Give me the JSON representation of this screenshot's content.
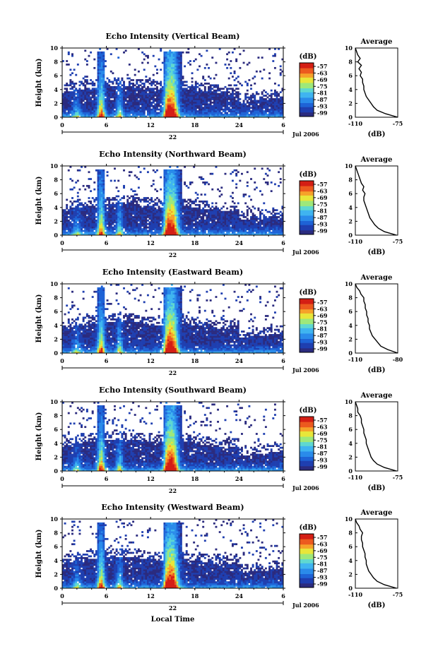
{
  "figure": {
    "xlabel": "Local Time",
    "date_label": "Jul 2006",
    "day_label": "22",
    "cbar_unit": "(dB)",
    "avg_title": "Average",
    "avg_xlabel": "(dB)",
    "ylabel": "Height (km)"
  },
  "chart_data": [
    {
      "type": "heatmap",
      "title": "Echo Intensity (Vertical Beam)",
      "xlabel": "Local Time",
      "ylabel": "Height (km)",
      "xticks": [
        "0",
        "6",
        "12",
        "18",
        "24",
        "6"
      ],
      "xlim": [
        0,
        30
      ],
      "yticks": [
        "0",
        "2",
        "4",
        "6",
        "8",
        "10"
      ],
      "ylim": [
        0,
        10
      ],
      "colorbar": {
        "label": "(dB)",
        "ticks": [
          "-57",
          "-63",
          "-69",
          "-75",
          "-81",
          "-87",
          "-93",
          "-99"
        ]
      },
      "profile": {
        "title": "Average",
        "xlabel": "(dB)",
        "xticks": [
          "-110",
          "-75"
        ],
        "xlim": [
          -110,
          -75
        ],
        "heights": [
          0,
          0.5,
          1,
          1.5,
          2,
          2.5,
          3,
          3.5,
          4,
          4.5,
          5,
          5.5,
          6,
          6.5,
          7,
          7.5,
          8,
          8.5,
          9,
          9.5,
          10
        ],
        "values": [
          -75,
          -85,
          -92,
          -95,
          -97,
          -99,
          -101,
          -102,
          -103,
          -103,
          -104,
          -104,
          -106,
          -105,
          -107,
          -105,
          -108,
          -106,
          -108,
          -109,
          -110
        ]
      }
    },
    {
      "type": "heatmap",
      "title": "Echo Intensity (Northward Beam)",
      "xlabel": "Local Time",
      "ylabel": "Height (km)",
      "xticks": [
        "0",
        "6",
        "12",
        "18",
        "24",
        "6"
      ],
      "xlim": [
        0,
        30
      ],
      "yticks": [
        "0",
        "2",
        "4",
        "6",
        "8",
        "10"
      ],
      "ylim": [
        0,
        10
      ],
      "colorbar": {
        "label": "(dB)",
        "ticks": [
          "-57",
          "-63",
          "-69",
          "-75",
          "-81",
          "-87",
          "-93",
          "-99"
        ]
      },
      "profile": {
        "title": "Average",
        "xlabel": "(dB)",
        "xticks": [
          "-110",
          "-75"
        ],
        "xlim": [
          -110,
          -75
        ],
        "heights": [
          0,
          0.5,
          1,
          1.5,
          2,
          2.5,
          3,
          3.5,
          4,
          4.5,
          5,
          5.5,
          6,
          6.5,
          7,
          7.5,
          8,
          8.5,
          9,
          9.5,
          10
        ],
        "values": [
          -76,
          -86,
          -91,
          -94,
          -96,
          -98,
          -99,
          -100,
          -101,
          -102,
          -103,
          -103,
          -102,
          -104,
          -103,
          -105,
          -106,
          -107,
          -108,
          -109,
          -110
        ]
      }
    },
    {
      "type": "heatmap",
      "title": "Echo Intensity (Eastward Beam)",
      "xlabel": "Local Time",
      "ylabel": "Height (km)",
      "xticks": [
        "0",
        "6",
        "12",
        "18",
        "24",
        "6"
      ],
      "xlim": [
        0,
        30
      ],
      "yticks": [
        "0",
        "2",
        "4",
        "6",
        "8",
        "10"
      ],
      "ylim": [
        0,
        10
      ],
      "colorbar": {
        "label": "(dB)",
        "ticks": [
          "-57",
          "-63",
          "-69",
          "-75",
          "-81",
          "-87",
          "-93",
          "-99"
        ]
      },
      "profile": {
        "title": "Average",
        "xlabel": "(dB)",
        "xticks": [
          "-110",
          "-80"
        ],
        "xlim": [
          -110,
          -80
        ],
        "heights": [
          0,
          0.5,
          1,
          1.5,
          2,
          2.5,
          3,
          3.5,
          4,
          4.5,
          5,
          5.5,
          6,
          6.5,
          7,
          7.5,
          8,
          8.5,
          9,
          9.5,
          10
        ],
        "values": [
          -80,
          -87,
          -92,
          -94,
          -96,
          -98,
          -99,
          -100,
          -100,
          -101,
          -101,
          -102,
          -102,
          -103,
          -103,
          -104,
          -104,
          -106,
          -107,
          -109,
          -110
        ]
      }
    },
    {
      "type": "heatmap",
      "title": "Echo Intensity (Southward Beam)",
      "xlabel": "Local Time",
      "ylabel": "Height (km)",
      "xticks": [
        "0",
        "6",
        "12",
        "18",
        "24",
        "6"
      ],
      "xlim": [
        0,
        30
      ],
      "yticks": [
        "0",
        "2",
        "4",
        "6",
        "8",
        "10"
      ],
      "ylim": [
        0,
        10
      ],
      "colorbar": {
        "label": "(dB)",
        "ticks": [
          "-57",
          "-63",
          "-69",
          "-75",
          "-81",
          "-87",
          "-93",
          "-99"
        ]
      },
      "profile": {
        "title": "Average",
        "xlabel": "(dB)",
        "xticks": [
          "-110",
          "-75"
        ],
        "xlim": [
          -110,
          -75
        ],
        "heights": [
          0,
          0.5,
          1,
          1.5,
          2,
          2.5,
          3,
          3.5,
          4,
          4.5,
          5,
          5.5,
          6,
          6.5,
          7,
          7.5,
          8,
          8.5,
          9,
          9.5,
          10
        ],
        "values": [
          -76,
          -86,
          -92,
          -95,
          -97,
          -98,
          -99,
          -100,
          -101,
          -101,
          -102,
          -103,
          -103,
          -104,
          -105,
          -105,
          -106,
          -108,
          -108,
          -109,
          -110
        ]
      }
    },
    {
      "type": "heatmap",
      "title": "Echo Intensity (Westward Beam)",
      "xlabel": "Local Time",
      "ylabel": "Height (km)",
      "xticks": [
        "0",
        "6",
        "12",
        "18",
        "24",
        "6"
      ],
      "xlim": [
        0,
        30
      ],
      "yticks": [
        "0",
        "2",
        "4",
        "6",
        "8",
        "10"
      ],
      "ylim": [
        0,
        10
      ],
      "colorbar": {
        "label": "(dB)",
        "ticks": [
          "-57",
          "-63",
          "-69",
          "-75",
          "-81",
          "-87",
          "-93",
          "-99"
        ]
      },
      "profile": {
        "title": "Average",
        "xlabel": "(dB)",
        "xticks": [
          "-110",
          "-75"
        ],
        "xlim": [
          -110,
          -75
        ],
        "heights": [
          0,
          0.5,
          1,
          1.5,
          2,
          2.5,
          3,
          3.5,
          4,
          4.5,
          5,
          5.5,
          6,
          6.5,
          7,
          7.5,
          8,
          8.5,
          9,
          9.5,
          10
        ],
        "values": [
          -76,
          -86,
          -92,
          -95,
          -97,
          -99,
          -100,
          -101,
          -101,
          -102,
          -102,
          -103,
          -104,
          -104,
          -105,
          -105,
          -104,
          -106,
          -107,
          -109,
          -110
        ]
      }
    }
  ],
  "colors": {
    "palette": [
      "#2b2b7f",
      "#1f3fb0",
      "#1e63d6",
      "#2a8bea",
      "#3fb4f0",
      "#5fd8d0",
      "#9ee87a",
      "#e8e63a",
      "#f6a22a",
      "#ec5a1f",
      "#d41e14"
    ],
    "background": "#ffffff",
    "axis": "#000000"
  }
}
